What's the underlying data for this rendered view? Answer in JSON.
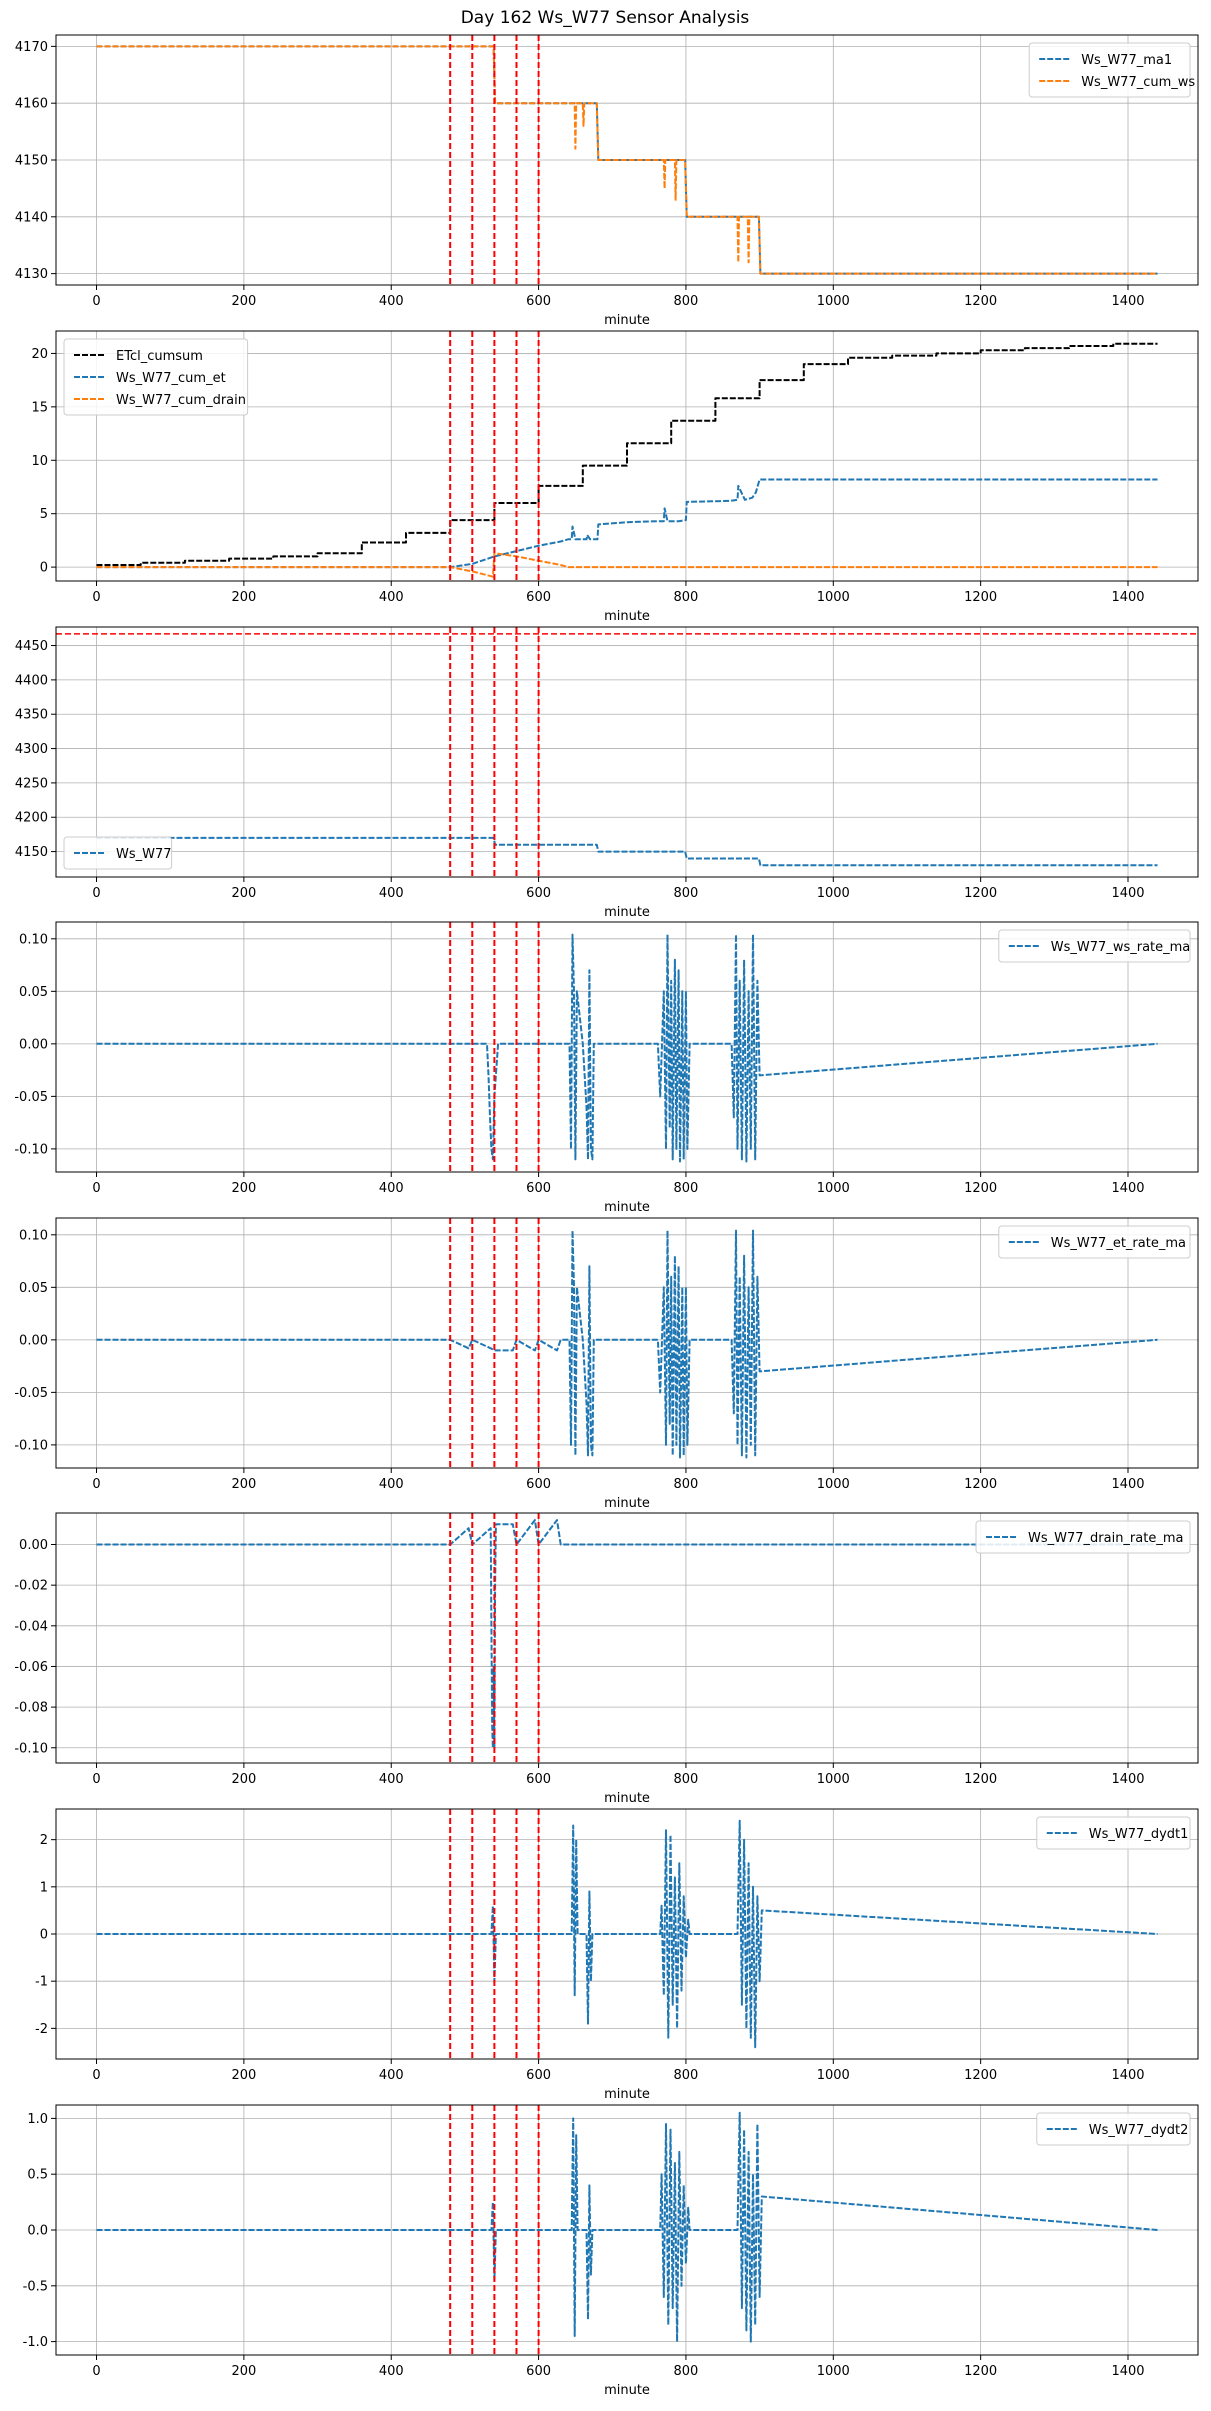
{
  "figure_title": "Day 162 Ws_W77 Sensor Analysis",
  "colors": {
    "blue": "#1f77b4",
    "orange": "#ff7f0e",
    "black": "#000000",
    "red": "#ff0000",
    "grid": "#b0b0b0"
  },
  "chart_data": [
    {
      "type": "line",
      "xlabel": "minute",
      "xlim": [
        -55,
        1495
      ],
      "ylim": [
        4128,
        4172
      ],
      "xticks": [
        0,
        200,
        400,
        600,
        800,
        1000,
        1200,
        1400
      ],
      "yticks": [
        4130,
        4140,
        4150,
        4160,
        4170
      ],
      "ytick_labels": [
        "4130",
        "4140",
        "4150",
        "4160",
        "4170"
      ],
      "legend_position": "upper right",
      "vlines": [
        480,
        510,
        540,
        570,
        600
      ],
      "series": [
        {
          "name": "Ws_W77_ma1",
          "color": "blue",
          "dashed": true,
          "x": [
            0,
            539,
            541,
            679,
            681,
            799,
            801,
            899,
            901,
            1440
          ],
          "y": [
            4170,
            4170,
            4160,
            4160,
            4150,
            4150,
            4140,
            4140,
            4130,
            4130
          ]
        },
        {
          "name": "Ws_W77_cum_ws",
          "color": "orange",
          "dashed": true,
          "x": [
            0,
            539,
            541,
            649,
            650,
            651,
            660,
            661,
            662,
            679,
            681,
            770,
            771,
            772,
            785,
            786,
            787,
            799,
            801,
            870,
            871,
            872,
            884,
            885,
            886,
            899,
            901,
            1440
          ],
          "y": [
            4170,
            4170,
            4160,
            4160,
            4152,
            4160,
            4160,
            4156,
            4160,
            4160,
            4150,
            4150,
            4145,
            4150,
            4150,
            4143,
            4150,
            4150,
            4140,
            4140,
            4132,
            4140,
            4140,
            4132,
            4140,
            4140,
            4130,
            4130
          ]
        }
      ]
    },
    {
      "type": "line",
      "xlabel": "minute",
      "xlim": [
        -55,
        1495
      ],
      "ylim": [
        -1.3,
        22.1
      ],
      "xticks": [
        0,
        200,
        400,
        600,
        800,
        1000,
        1200,
        1400
      ],
      "yticks": [
        0,
        5,
        10,
        15,
        20
      ],
      "ytick_labels": [
        "0",
        "5",
        "10",
        "15",
        "20"
      ],
      "legend_position": "upper left",
      "vlines": [
        480,
        510,
        540,
        570,
        600
      ],
      "series": [
        {
          "name": "ETcl_cumsum",
          "color": "black",
          "dashed": true,
          "step": true,
          "x": [
            0,
            60,
            120,
            180,
            240,
            300,
            360,
            420,
            480,
            540,
            600,
            660,
            720,
            780,
            840,
            900,
            960,
            1020,
            1080,
            1140,
            1200,
            1260,
            1320,
            1380,
            1440
          ],
          "y": [
            0.2,
            0.4,
            0.6,
            0.8,
            1.0,
            1.3,
            2.3,
            3.2,
            4.4,
            6.0,
            7.6,
            9.5,
            11.6,
            13.7,
            15.8,
            17.5,
            19.0,
            19.6,
            19.8,
            20.0,
            20.3,
            20.5,
            20.7,
            20.9,
            20.9
          ]
        },
        {
          "name": "Ws_W77_cum_et",
          "color": "blue",
          "dashed": true,
          "x": [
            0,
            480,
            510,
            540,
            570,
            600,
            630,
            640,
            645,
            646,
            650,
            660,
            665,
            666,
            670,
            680,
            681,
            720,
            760,
            770,
            771,
            775,
            790,
            800,
            801,
            860,
            870,
            871,
            880,
            890,
            895,
            900,
            1440
          ],
          "y": [
            0,
            0,
            0.3,
            1.0,
            1.5,
            2.0,
            2.4,
            2.6,
            2.6,
            3.8,
            2.6,
            2.6,
            2.6,
            3.0,
            2.6,
            2.6,
            4.0,
            4.2,
            4.3,
            4.3,
            5.5,
            4.3,
            4.3,
            4.4,
            6.1,
            6.2,
            6.3,
            7.6,
            6.3,
            6.5,
            7.0,
            8.2,
            8.2
          ]
        },
        {
          "name": "Ws_W77_cum_drain",
          "color": "orange",
          "dashed": true,
          "x": [
            0,
            480,
            510,
            538,
            540,
            570,
            600,
            630,
            640,
            660,
            1440
          ],
          "y": [
            0,
            0,
            -0.4,
            -0.9,
            1.3,
            1.0,
            0.6,
            0.2,
            0,
            0,
            0
          ]
        }
      ]
    },
    {
      "type": "line",
      "xlabel": "minute",
      "xlim": [
        -55,
        1495
      ],
      "ylim": [
        4113,
        4477
      ],
      "xticks": [
        0,
        200,
        400,
        600,
        800,
        1000,
        1200,
        1400
      ],
      "yticks": [
        4150,
        4200,
        4250,
        4300,
        4350,
        4400,
        4450
      ],
      "ytick_labels": [
        "4150",
        "4200",
        "4250",
        "4300",
        "4350",
        "4400",
        "4450"
      ],
      "legend_position": "lower left",
      "vlines": [
        480,
        510,
        540,
        570,
        600
      ],
      "hline": 4467,
      "series": [
        {
          "name": "Ws_W77",
          "color": "blue",
          "dashed": true,
          "x": [
            0,
            539,
            541,
            679,
            681,
            799,
            801,
            899,
            901,
            1440
          ],
          "y": [
            4170,
            4170,
            4160,
            4160,
            4150,
            4150,
            4140,
            4140,
            4130,
            4130
          ]
        }
      ]
    },
    {
      "type": "line",
      "xlabel": "minute",
      "xlim": [
        -55,
        1495
      ],
      "ylim": [
        -0.122,
        0.116
      ],
      "xticks": [
        0,
        200,
        400,
        600,
        800,
        1000,
        1200,
        1400
      ],
      "yticks": [
        -0.1,
        -0.05,
        0.0,
        0.05,
        0.1
      ],
      "ytick_labels": [
        "-0.10",
        "-0.05",
        "0.00",
        "0.05",
        "0.10"
      ],
      "legend_position": "upper right",
      "vlines": [
        480,
        510,
        540,
        570,
        600
      ],
      "series": [
        {
          "name": "Ws_W77_ws_rate_ma",
          "color": "blue",
          "dashed": true,
          "x": [
            0,
            530,
            532,
            534,
            536,
            538,
            540,
            545,
            642,
            644,
            646,
            648,
            650,
            652,
            660,
            665,
            667,
            669,
            671,
            673,
            675,
            762,
            765,
            770,
            773,
            775,
            778,
            780,
            782,
            785,
            787,
            790,
            792,
            795,
            797,
            800,
            802,
            805,
            862,
            865,
            868,
            870,
            873,
            876,
            879,
            882,
            885,
            888,
            891,
            894,
            897,
            900,
            1440
          ],
          "y": [
            0,
            0,
            -0.03,
            -0.07,
            -0.1,
            -0.11,
            -0.05,
            0,
            0,
            -0.1,
            0.104,
            0.05,
            -0.11,
            0.05,
            0,
            -0.06,
            -0.11,
            0.07,
            -0.1,
            -0.11,
            0,
            0,
            -0.05,
            0.05,
            -0.1,
            0.104,
            -0.08,
            0.06,
            -0.11,
            0.08,
            -0.1,
            0.07,
            -0.112,
            0.05,
            -0.11,
            0.05,
            -0.1,
            0,
            0,
            -0.07,
            0.104,
            -0.1,
            0.06,
            -0.11,
            0.08,
            -0.112,
            0.05,
            -0.1,
            0.104,
            -0.11,
            0.06,
            -0.03,
            0
          ]
        }
      ]
    },
    {
      "type": "line",
      "xlabel": "minute",
      "xlim": [
        -55,
        1495
      ],
      "ylim": [
        -0.122,
        0.116
      ],
      "xticks": [
        0,
        200,
        400,
        600,
        800,
        1000,
        1200,
        1400
      ],
      "yticks": [
        -0.1,
        -0.05,
        0.0,
        0.05,
        0.1
      ],
      "ytick_labels": [
        "-0.10",
        "-0.05",
        "0.00",
        "0.05",
        "0.10"
      ],
      "legend_position": "upper right",
      "vlines": [
        480,
        510,
        540,
        570,
        600
      ],
      "series": [
        {
          "name": "Ws_W77_et_rate_ma",
          "color": "blue",
          "dashed": true,
          "x": [
            0,
            480,
            505,
            510,
            535,
            540,
            565,
            570,
            595,
            600,
            625,
            630,
            642,
            644,
            646,
            648,
            650,
            652,
            660,
            665,
            667,
            669,
            671,
            673,
            675,
            762,
            765,
            770,
            773,
            775,
            778,
            780,
            782,
            785,
            787,
            790,
            792,
            795,
            797,
            800,
            802,
            805,
            862,
            865,
            868,
            870,
            873,
            876,
            879,
            882,
            885,
            888,
            891,
            894,
            897,
            900,
            1440
          ],
          "y": [
            0,
            0,
            -0.008,
            0,
            -0.008,
            -0.01,
            -0.01,
            0,
            -0.01,
            0,
            -0.01,
            0,
            0,
            -0.1,
            0.104,
            0.05,
            -0.11,
            0.05,
            0,
            -0.06,
            -0.11,
            0.07,
            -0.1,
            -0.11,
            0,
            0,
            -0.05,
            0.05,
            -0.1,
            0.104,
            -0.08,
            0.06,
            -0.11,
            0.08,
            -0.1,
            0.07,
            -0.112,
            0.05,
            -0.11,
            0.05,
            -0.1,
            0,
            0,
            -0.07,
            0.104,
            -0.1,
            0.06,
            -0.11,
            0.08,
            -0.112,
            0.05,
            -0.1,
            0.104,
            -0.11,
            0.06,
            -0.03,
            0
          ]
        }
      ]
    },
    {
      "type": "line",
      "xlabel": "minute",
      "xlim": [
        -55,
        1495
      ],
      "ylim": [
        -0.1075,
        0.0155
      ],
      "xticks": [
        0,
        200,
        400,
        600,
        800,
        1000,
        1200,
        1400
      ],
      "yticks": [
        -0.1,
        -0.08,
        -0.06,
        -0.04,
        -0.02,
        0.0
      ],
      "ytick_labels": [
        "-0.10",
        "-0.08",
        "-0.06",
        "-0.04",
        "-0.02",
        "0.00"
      ],
      "legend_position": "upper right",
      "vlines": [
        480,
        510,
        540,
        570,
        600
      ],
      "series": [
        {
          "name": "Ws_W77_drain_rate_ma",
          "color": "blue",
          "dashed": true,
          "x": [
            0,
            480,
            505,
            510,
            535,
            536,
            537,
            538,
            539,
            540,
            541,
            542,
            545,
            565,
            570,
            595,
            600,
            625,
            630,
            1440
          ],
          "y": [
            0,
            0,
            0.008,
            0,
            0.008,
            -0.04,
            -0.09,
            -0.1,
            -0.06,
            -0.1,
            -0.02,
            0.01,
            0.01,
            0.01,
            0,
            0.012,
            0,
            0.012,
            0,
            0
          ]
        }
      ]
    },
    {
      "type": "line",
      "xlabel": "minute",
      "xlim": [
        -55,
        1495
      ],
      "ylim": [
        -2.65,
        2.65
      ],
      "xticks": [
        0,
        200,
        400,
        600,
        800,
        1000,
        1200,
        1400
      ],
      "yticks": [
        -2,
        -1,
        0,
        1,
        2
      ],
      "ytick_labels": [
        "-2",
        "-1",
        "0",
        "1",
        "2"
      ],
      "legend_position": "upper right",
      "vlines": [
        480,
        510,
        540,
        570,
        600
      ],
      "series": [
        {
          "name": "Ws_W77_dydt1",
          "color": "blue",
          "dashed": true,
          "x": [
            0,
            536,
            538,
            540,
            542,
            645,
            647,
            649,
            651,
            653,
            665,
            667,
            669,
            671,
            673,
            765,
            767,
            770,
            773,
            776,
            779,
            782,
            785,
            788,
            791,
            794,
            797,
            800,
            803,
            805,
            870,
            873,
            876,
            879,
            882,
            885,
            888,
            891,
            894,
            897,
            900,
            903,
            1440
          ],
          "y": [
            0,
            0,
            0.6,
            -1.0,
            0,
            0,
            2.3,
            -1.3,
            2.0,
            0,
            0,
            -1.9,
            0.9,
            -1.0,
            0,
            0,
            0.6,
            -1.3,
            2.2,
            -2.2,
            2.1,
            -1.5,
            1.2,
            -2.0,
            1.5,
            -1.2,
            0.8,
            -0.5,
            0.3,
            0,
            0,
            2.4,
            -1.5,
            2.0,
            -2.0,
            1.5,
            -2.2,
            1.0,
            -2.4,
            0.8,
            -1.0,
            0.5,
            0
          ]
        }
      ]
    },
    {
      "type": "line",
      "xlabel": "minute",
      "xlim": [
        -55,
        1495
      ],
      "ylim": [
        -1.12,
        1.12
      ],
      "xticks": [
        0,
        200,
        400,
        600,
        800,
        1000,
        1200,
        1400
      ],
      "yticks": [
        -1.0,
        -0.5,
        0.0,
        0.5,
        1.0
      ],
      "ytick_labels": [
        "-1.0",
        "-0.5",
        "0.0",
        "0.5",
        "1.0"
      ],
      "legend_position": "upper right",
      "vlines": [
        480,
        510,
        540,
        570,
        600
      ],
      "series": [
        {
          "name": "Ws_W77_dydt2",
          "color": "blue",
          "dashed": true,
          "x": [
            0,
            536,
            538,
            540,
            542,
            645,
            647,
            649,
            651,
            653,
            665,
            667,
            669,
            671,
            673,
            765,
            767,
            770,
            773,
            776,
            779,
            782,
            785,
            788,
            791,
            794,
            797,
            800,
            803,
            805,
            870,
            873,
            876,
            879,
            882,
            885,
            888,
            891,
            894,
            897,
            900,
            903,
            1440
          ],
          "y": [
            0,
            0,
            0.25,
            -0.45,
            0,
            0,
            1.0,
            -0.95,
            0.85,
            0,
            0,
            -0.8,
            0.4,
            -0.4,
            0,
            0,
            0.5,
            -0.6,
            0.95,
            -0.85,
            0.9,
            -0.7,
            0.6,
            -1.0,
            0.7,
            -0.5,
            0.4,
            -0.3,
            0.2,
            0,
            0,
            1.05,
            -0.7,
            0.9,
            -0.9,
            0.7,
            -1.0,
            0.5,
            -0.85,
            0.95,
            -0.6,
            0.3,
            0
          ]
        }
      ]
    }
  ]
}
